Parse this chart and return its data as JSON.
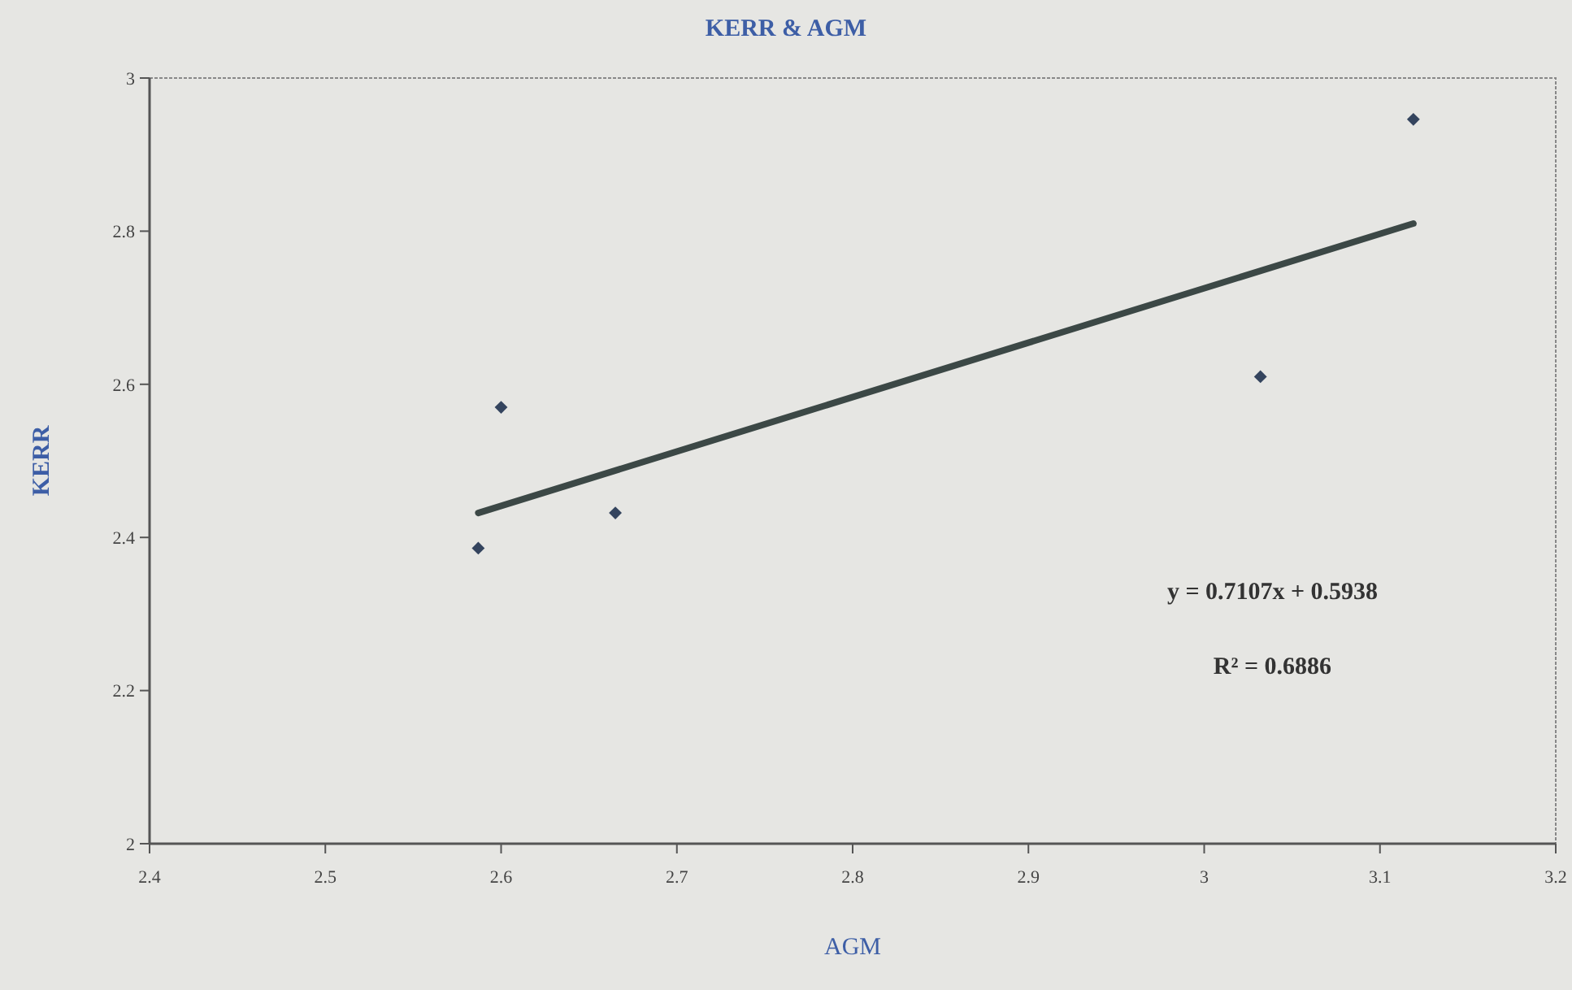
{
  "chart_data": {
    "type": "scatter",
    "title": "KERR & AGM",
    "xlabel": "AGM",
    "ylabel": "KERR",
    "grid": false,
    "xlim": [
      2.4,
      3.2
    ],
    "xticks": [
      2.4,
      2.5,
      2.6,
      2.7,
      2.8,
      2.9,
      3,
      3.1,
      3.2
    ],
    "ylim": [
      2,
      3
    ],
    "yticks": [
      2,
      2.2,
      2.4,
      2.6,
      2.8,
      3
    ],
    "series": [
      {
        "marker": "diamond",
        "color": "#34445e",
        "x": [
          2.587,
          2.6,
          2.665,
          3.032,
          3.119
        ],
        "values": [
          2.386,
          2.57,
          2.432,
          2.61,
          2.946
        ]
      },
      {
        "type": "line",
        "marker": "none",
        "color": "#3c4846",
        "x": [
          2.587,
          3.119
        ],
        "values": [
          2.432,
          2.81
        ]
      }
    ],
    "annotations": [
      "y = 0.7107x + 0.5938",
      "R² = 0.6886"
    ]
  }
}
